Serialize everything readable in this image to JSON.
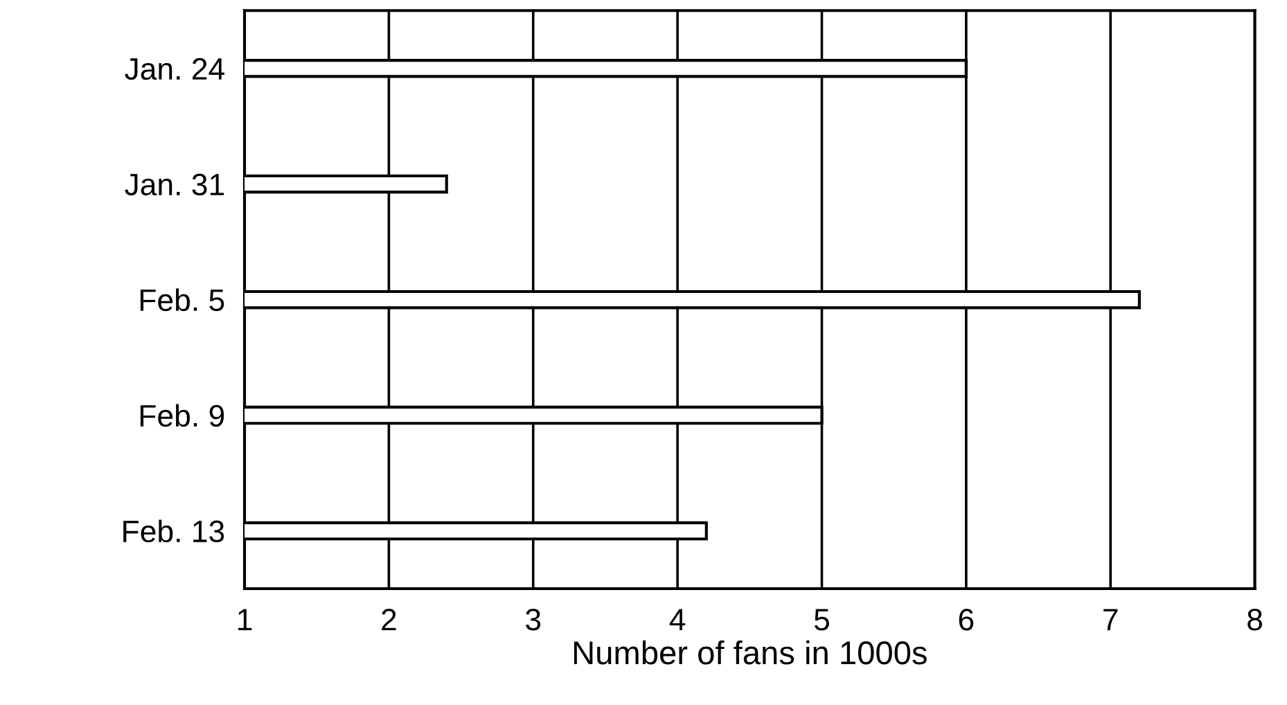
{
  "chart_data": {
    "type": "bar",
    "orientation": "horizontal",
    "xlabel": "Number of fans in 1000s",
    "categories": [
      "Jan. 24",
      "Jan. 31",
      "Feb. 5",
      "Feb. 9",
      "Feb. 13"
    ],
    "values": [
      6.0,
      2.4,
      7.2,
      5.0,
      4.2
    ],
    "color": "#ffffff",
    "xlim": [
      1,
      8
    ],
    "xticks": [
      1,
      2,
      3,
      4,
      5,
      6,
      7,
      8
    ],
    "grid": "x",
    "legend": false
  }
}
